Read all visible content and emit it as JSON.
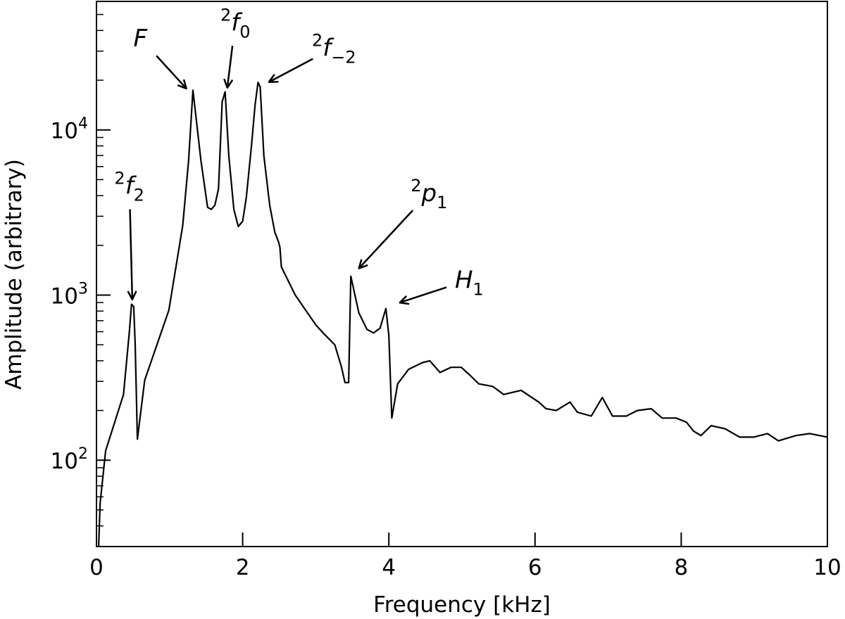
{
  "chart_data": {
    "type": "line",
    "title": "",
    "xlabel": "Frequency [kHz]",
    "ylabel": "Amplitude (arbitrary)",
    "xlim": [
      0,
      10
    ],
    "ylim": [
      30,
      60000
    ],
    "yscale": "log",
    "grid": false,
    "line_color": "#000000",
    "x_ticks": [
      "0",
      "2",
      "4",
      "6",
      "8",
      "10"
    ],
    "y_ticks": [
      {
        "base": "10",
        "exp": "2",
        "value": 100
      },
      {
        "base": "10",
        "exp": "3",
        "value": 1000
      },
      {
        "base": "10",
        "exp": "4",
        "value": 10000
      }
    ],
    "series": [
      {
        "x": [
          0.03,
          0.05,
          0.125,
          0.37,
          0.45,
          0.48,
          0.51,
          0.53,
          0.56,
          0.66,
          0.99,
          1.18,
          1.26,
          1.32,
          1.43,
          1.52,
          1.57,
          1.62,
          1.67,
          1.72,
          1.76,
          1.81,
          1.88,
          1.94,
          2.0,
          2.05,
          2.12,
          2.17,
          2.21,
          2.24,
          2.29,
          2.37,
          2.44,
          2.49,
          2.51,
          2.53,
          2.72,
          3.0,
          3.1,
          3.26,
          3.35,
          3.4,
          3.45,
          3.48,
          3.59,
          3.7,
          3.79,
          3.88,
          3.96,
          4.0,
          4.04,
          4.12,
          4.27,
          4.46,
          4.56,
          4.7,
          4.85,
          4.99,
          5.1,
          5.23,
          5.42,
          5.57,
          5.81,
          6.05,
          6.15,
          6.29,
          6.48,
          6.58,
          6.77,
          6.92,
          7.06,
          7.25,
          7.4,
          7.59,
          7.74,
          7.93,
          8.07,
          8.17,
          8.27,
          8.41,
          8.6,
          8.8,
          8.99,
          9.18,
          9.33,
          9.57,
          9.76,
          10.0
        ],
        "y": [
          30,
          55,
          114,
          250,
          600,
          880,
          850,
          500,
          134,
          305,
          810,
          2640,
          6500,
          17400,
          6500,
          3400,
          3300,
          3500,
          4400,
          14800,
          17000,
          7000,
          3300,
          2600,
          2800,
          3900,
          8000,
          14100,
          19400,
          18200,
          7000,
          3500,
          2400,
          2100,
          1950,
          1480,
          1000,
          660,
          590,
          500,
          370,
          295,
          295,
          1300,
          780,
          620,
          590,
          630,
          830,
          570,
          180,
          290,
          355,
          390,
          400,
          340,
          365,
          365,
          330,
          290,
          280,
          250,
          265,
          225,
          205,
          200,
          225,
          195,
          185,
          240,
          185,
          185,
          200,
          205,
          180,
          180,
          170,
          150,
          141,
          162,
          155,
          138,
          138,
          145,
          131,
          141,
          145,
          138
        ]
      }
    ],
    "annotations": [
      {
        "pre": "",
        "base": "F",
        "sub": "",
        "xy": [
          1.23,
          17800
        ],
        "xytext": [
          0.6,
          32000
        ]
      },
      {
        "pre": "2",
        "base": "f",
        "sub": "0",
        "xy": [
          1.79,
          18000
        ],
        "xytext": [
          1.9,
          40000
        ]
      },
      {
        "pre": "2",
        "base": "f",
        "sub": "−2",
        "xy": [
          2.36,
          19500
        ],
        "xytext": [
          3.25,
          28000
        ]
      },
      {
        "pre": "2",
        "base": "f",
        "sub": "2",
        "xy": [
          0.49,
          940
        ],
        "xytext": [
          0.45,
          4100
        ]
      },
      {
        "pre": "2",
        "base": "p",
        "sub": "1",
        "xy": [
          3.59,
          1450
        ],
        "xytext": [
          4.55,
          3700
        ]
      },
      {
        "pre": "",
        "base": "H",
        "sub": "1",
        "xy": [
          4.15,
          900
        ],
        "xytext": [
          5.1,
          1100
        ]
      }
    ]
  }
}
